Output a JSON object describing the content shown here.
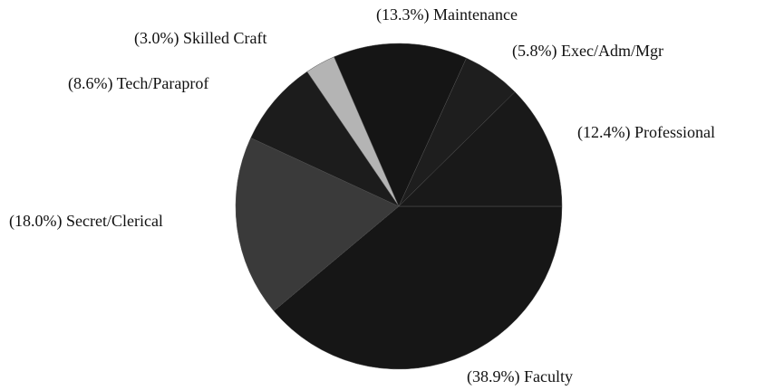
{
  "chart_data": {
    "type": "pie",
    "categories": [
      "Faculty",
      "Secret/Clerical",
      "Tech/Paraprof",
      "Skilled Craft",
      "Maintenance",
      "Exec/Adm/Mgr",
      "Professional"
    ],
    "values": [
      38.9,
      18.0,
      8.6,
      3.0,
      13.3,
      5.8,
      12.4
    ],
    "value_labels": [
      "(38.9%)",
      "(18.0%)",
      "(8.6%)",
      "(3.0%)",
      "(13.3%)",
      "(5.8%)",
      "(12.4%)"
    ],
    "colors": [
      "#161616",
      "#3a3a3a",
      "#1c1c1c",
      "#b4b4b4",
      "#151515",
      "#1e1e1e",
      "#191919"
    ]
  }
}
